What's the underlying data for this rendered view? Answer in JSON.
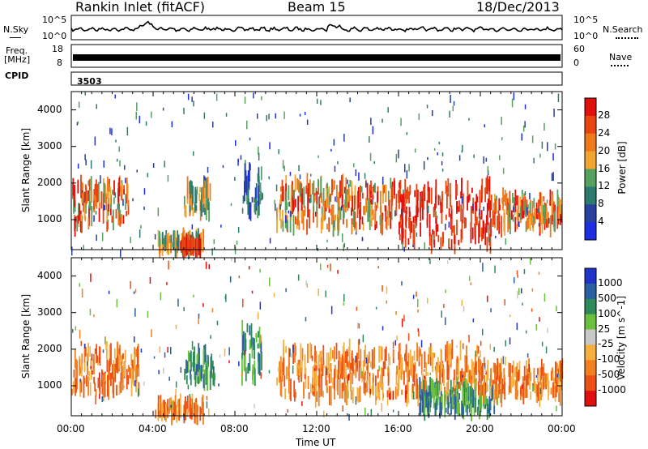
{
  "header": {
    "station": "Rankin Inlet (fitACF)",
    "beam": "Beam 15",
    "date": "18/Dec/2013"
  },
  "strips": {
    "nsky_label": "N.Sky",
    "nsearch_label": "N.Search",
    "freq_label_1": "Freq.",
    "freq_label_2": "[MHz]",
    "nave_label": "Nave",
    "cpid_label": "CPID",
    "cpid_value": "3503",
    "noise_left_ticks": [
      "10^5",
      "10^0"
    ],
    "noise_right_ticks": [
      "10^5",
      "10^0"
    ],
    "freq_left_ticks": [
      "18",
      "8"
    ],
    "nave_right_ticks": [
      "60",
      "0"
    ]
  },
  "chart_data": [
    {
      "type": "heatmap",
      "parameter": "Power",
      "ylabel": "Slant Range [km]",
      "y_ticks": [
        "1000",
        "2000",
        "3000",
        "4000"
      ],
      "ylim": [
        180,
        4500
      ],
      "colorbar_label": "Power [dB]",
      "colorbar_ticks": [
        "4",
        "8",
        "12",
        "16",
        "20",
        "24",
        "28"
      ],
      "colorbar_colors": [
        "#1f2ee0",
        "#27419f",
        "#2e7a6e",
        "#56a060",
        "#f2a530",
        "#ee7a1a",
        "#e84510",
        "#e0100c"
      ],
      "regions": [
        {
          "t0": 0.0,
          "t1": 2.8,
          "r0": 800,
          "r1": 2000,
          "level": "high"
        },
        {
          "t0": 4.2,
          "t1": 6.5,
          "r0": 200,
          "r1": 500,
          "level": "mid"
        },
        {
          "t0": 5.3,
          "t1": 6.3,
          "r0": 200,
          "r1": 350,
          "level": "max"
        },
        {
          "t0": 5.5,
          "t1": 6.8,
          "r0": 1200,
          "r1": 1900,
          "level": "mid"
        },
        {
          "t0": 8.3,
          "t1": 9.3,
          "r0": 1200,
          "r1": 2400,
          "level": "low"
        },
        {
          "t0": 10.0,
          "t1": 16.0,
          "r0": 800,
          "r1": 2000,
          "level": "high"
        },
        {
          "t0": 16.0,
          "t1": 20.5,
          "r0": 300,
          "r1": 2000,
          "level": "max"
        },
        {
          "t0": 20.5,
          "t1": 24.0,
          "r0": 800,
          "r1": 1600,
          "level": "high"
        }
      ]
    },
    {
      "type": "heatmap",
      "parameter": "Velocity",
      "ylabel": "Slant Range [km]",
      "x_ticks": [
        "00:00",
        "04:00",
        "08:00",
        "12:00",
        "16:00",
        "20:00",
        "00:00"
      ],
      "xlabel": "Time UT",
      "xlim": [
        0,
        24
      ],
      "y_ticks": [
        "1000",
        "2000",
        "3000",
        "4000"
      ],
      "ylim": [
        180,
        4500
      ],
      "colorbar_label": "Velocity [m s^-1]",
      "colorbar_ticks": [
        "1000",
        "500",
        "100",
        "25",
        "-25",
        "-100",
        "-500",
        "-1000"
      ],
      "colorbar_colors": [
        "#2233c8",
        "#2a5fa0",
        "#2f8a5a",
        "#6cc040",
        "#c8c8c8",
        "#f5b040",
        "#f08020",
        "#ec5015",
        "#e01010"
      ],
      "regions": [
        {
          "t0": 0.0,
          "t1": 3.3,
          "r0": 800,
          "r1": 2000,
          "level": "neg"
        },
        {
          "t0": 4.2,
          "t1": 6.5,
          "r0": 200,
          "r1": 550,
          "level": "neg"
        },
        {
          "t0": 5.5,
          "t1": 7.0,
          "r0": 1100,
          "r1": 1900,
          "level": "pos"
        },
        {
          "t0": 8.3,
          "t1": 9.3,
          "r0": 1200,
          "r1": 2600,
          "level": "pos"
        },
        {
          "t0": 10.0,
          "t1": 16.0,
          "r0": 700,
          "r1": 2000,
          "level": "neg"
        },
        {
          "t0": 16.0,
          "t1": 20.0,
          "r0": 700,
          "r1": 2000,
          "level": "neg"
        },
        {
          "t0": 17.0,
          "t1": 21.0,
          "r0": 300,
          "r1": 1000,
          "level": "pos"
        },
        {
          "t0": 20.0,
          "t1": 24.0,
          "r0": 700,
          "r1": 1500,
          "level": "neg"
        }
      ]
    }
  ]
}
